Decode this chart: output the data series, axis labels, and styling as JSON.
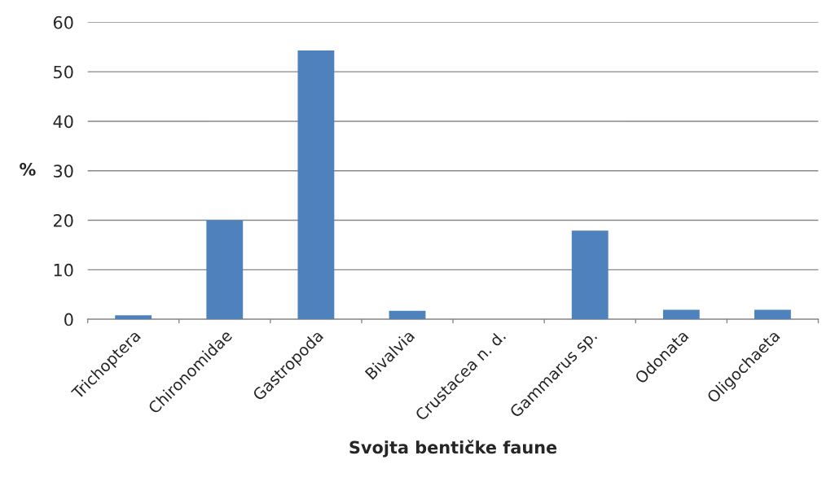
{
  "chart_data": {
    "type": "bar",
    "xlabel": "Svojta bentičke faune",
    "ylabel": "%",
    "categories": [
      "Trichoptera",
      "Chironomidae",
      "Gastropoda",
      "Bivalvia",
      "Crustacea n. d.",
      "Gammarus sp.",
      "Odonata",
      "Oligochaeta"
    ],
    "values": [
      0.8,
      20,
      54.3,
      1.7,
      0,
      17.9,
      1.9,
      1.9
    ],
    "color": "#4f81bd",
    "ylim": [
      0,
      60
    ],
    "yticks": [
      0,
      10,
      20,
      30,
      40,
      50,
      60
    ],
    "grid": "y"
  }
}
